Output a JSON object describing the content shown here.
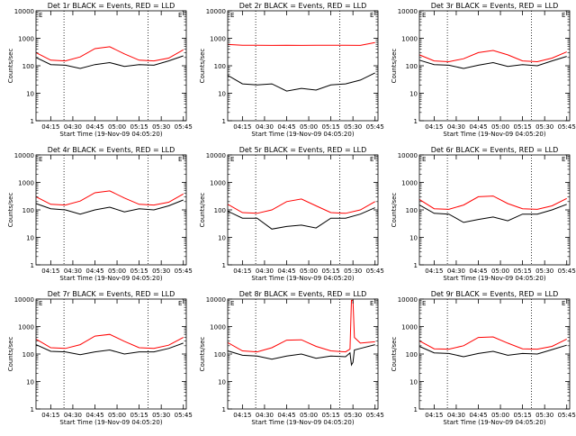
{
  "figure": {
    "xlabel": "Start Time (19-Nov-09 04:05:20)",
    "ylabel": "Counts/sec",
    "xticks": [
      "04:15",
      "04:30",
      "04:45",
      "05:00",
      "05:15",
      "05:30",
      "05:45"
    ],
    "yticks": [
      "1",
      "10",
      "100",
      "1000",
      "10000"
    ],
    "colors": {
      "events": "#000000",
      "lld": "#ff0000"
    },
    "corner_mark": "E"
  },
  "chart_data": [
    {
      "type": "line",
      "title": "Det 1r BLACK = Events, RED = LLD",
      "yscale": "log",
      "ylim": [
        1,
        10000
      ],
      "xlim": [
        "04:05",
        "05:47"
      ],
      "vlines": [
        "04:24",
        "05:21"
      ],
      "series": [
        {
          "name": "LLD",
          "color": "#ff0000",
          "x": [
            "04:05",
            "04:15",
            "04:25",
            "04:35",
            "04:45",
            "04:55",
            "05:05",
            "05:15",
            "05:25",
            "05:35",
            "05:45"
          ],
          "values": [
            300,
            160,
            150,
            210,
            420,
            490,
            270,
            160,
            150,
            190,
            380
          ]
        },
        {
          "name": "Events",
          "color": "#000000",
          "x": [
            "04:05",
            "04:15",
            "04:25",
            "04:35",
            "04:45",
            "04:55",
            "05:05",
            "05:15",
            "05:25",
            "05:35",
            "05:45"
          ],
          "values": [
            200,
            110,
            105,
            80,
            110,
            130,
            95,
            110,
            105,
            150,
            230
          ]
        }
      ]
    },
    {
      "type": "line",
      "title": "Det 2r BLACK = Events, RED = LLD",
      "yscale": "log",
      "ylim": [
        1,
        10000
      ],
      "xlim": [
        "04:05",
        "05:47"
      ],
      "vlines": [
        "04:24",
        "05:21"
      ],
      "series": [
        {
          "name": "LLD",
          "color": "#ff0000",
          "x": [
            "04:05",
            "04:15",
            "04:25",
            "04:35",
            "04:45",
            "04:55",
            "05:05",
            "05:15",
            "05:25",
            "05:35",
            "05:45"
          ],
          "values": [
            600,
            560,
            560,
            550,
            560,
            550,
            560,
            560,
            560,
            550,
            700
          ]
        },
        {
          "name": "Events",
          "color": "#000000",
          "x": [
            "04:05",
            "04:15",
            "04:25",
            "04:35",
            "04:45",
            "04:55",
            "05:05",
            "05:15",
            "05:25",
            "05:35",
            "05:45"
          ],
          "values": [
            45,
            22,
            20,
            22,
            12,
            15,
            13,
            20,
            22,
            30,
            55
          ]
        }
      ]
    },
    {
      "type": "line",
      "title": "Det 3r BLACK = Events, RED = LLD",
      "yscale": "log",
      "ylim": [
        1,
        10000
      ],
      "xlim": [
        "04:05",
        "05:47"
      ],
      "vlines": [
        "04:24",
        "05:21"
      ],
      "series": [
        {
          "name": "LLD",
          "color": "#ff0000",
          "x": [
            "04:05",
            "04:15",
            "04:25",
            "04:35",
            "04:45",
            "04:55",
            "05:05",
            "05:15",
            "05:25",
            "05:35",
            "05:45"
          ],
          "values": [
            250,
            150,
            140,
            180,
            300,
            360,
            250,
            150,
            140,
            190,
            320
          ]
        },
        {
          "name": "Events",
          "color": "#000000",
          "x": [
            "04:05",
            "04:15",
            "04:25",
            "04:35",
            "04:45",
            "04:55",
            "05:05",
            "05:15",
            "05:25",
            "05:35",
            "05:45"
          ],
          "values": [
            160,
            110,
            105,
            80,
            105,
            130,
            95,
            110,
            100,
            150,
            220
          ]
        }
      ]
    },
    {
      "type": "line",
      "title": "Det 4r BLACK = Events, RED = LLD",
      "yscale": "log",
      "ylim": [
        1,
        10000
      ],
      "xlim": [
        "04:05",
        "05:47"
      ],
      "vlines": [
        "04:24",
        "05:21"
      ],
      "series": [
        {
          "name": "LLD",
          "color": "#ff0000",
          "x": [
            "04:05",
            "04:15",
            "04:25",
            "04:35",
            "04:45",
            "04:55",
            "05:05",
            "05:15",
            "05:25",
            "05:35",
            "05:45"
          ],
          "values": [
            300,
            160,
            150,
            210,
            420,
            490,
            270,
            160,
            150,
            190,
            380
          ]
        },
        {
          "name": "Events",
          "color": "#000000",
          "x": [
            "04:05",
            "04:15",
            "04:25",
            "04:35",
            "04:45",
            "04:55",
            "05:05",
            "05:15",
            "05:25",
            "05:35",
            "05:45"
          ],
          "values": [
            170,
            110,
            100,
            70,
            100,
            125,
            85,
            110,
            100,
            140,
            230
          ]
        }
      ]
    },
    {
      "type": "line",
      "title": "Det 5r BLACK = Events, RED = LLD",
      "yscale": "log",
      "ylim": [
        1,
        10000
      ],
      "xlim": [
        "04:05",
        "05:47"
      ],
      "vlines": [
        "04:24",
        "05:21"
      ],
      "series": [
        {
          "name": "LLD",
          "color": "#ff0000",
          "x": [
            "04:05",
            "04:15",
            "04:25",
            "04:35",
            "04:45",
            "04:55",
            "05:05",
            "05:15",
            "05:25",
            "05:35",
            "05:45"
          ],
          "values": [
            160,
            80,
            75,
            100,
            200,
            250,
            140,
            80,
            75,
            100,
            200
          ]
        },
        {
          "name": "Events",
          "color": "#000000",
          "x": [
            "04:05",
            "04:15",
            "04:25",
            "04:35",
            "04:45",
            "04:55",
            "05:05",
            "05:15",
            "05:25",
            "05:35",
            "05:45"
          ],
          "values": [
            90,
            50,
            50,
            20,
            25,
            28,
            22,
            50,
            50,
            70,
            120
          ]
        }
      ]
    },
    {
      "type": "line",
      "title": "Det 6r BLACK = Events, RED = LLD",
      "yscale": "log",
      "ylim": [
        1,
        10000
      ],
      "xlim": [
        "04:05",
        "05:47"
      ],
      "vlines": [
        "04:24",
        "05:21"
      ],
      "series": [
        {
          "name": "LLD",
          "color": "#ff0000",
          "x": [
            "04:05",
            "04:15",
            "04:25",
            "04:35",
            "04:45",
            "04:55",
            "05:05",
            "05:15",
            "05:25",
            "05:35",
            "05:45"
          ],
          "values": [
            240,
            110,
            105,
            150,
            300,
            320,
            170,
            110,
            105,
            140,
            260
          ]
        },
        {
          "name": "Events",
          "color": "#000000",
          "x": [
            "04:05",
            "04:15",
            "04:25",
            "04:35",
            "04:45",
            "04:55",
            "05:05",
            "05:15",
            "05:25",
            "05:35",
            "05:45"
          ],
          "values": [
            150,
            75,
            70,
            35,
            45,
            55,
            40,
            70,
            70,
            100,
            160
          ]
        }
      ]
    },
    {
      "type": "line",
      "title": "Det 7r BLACK = Events, RED = LLD",
      "yscale": "log",
      "ylim": [
        1,
        10000
      ],
      "xlim": [
        "04:05",
        "05:47"
      ],
      "vlines": [
        "04:24",
        "05:21"
      ],
      "series": [
        {
          "name": "LLD",
          "color": "#ff0000",
          "x": [
            "04:05",
            "04:15",
            "04:25",
            "04:35",
            "04:45",
            "04:55",
            "05:05",
            "05:15",
            "05:25",
            "05:35",
            "05:45"
          ],
          "values": [
            350,
            170,
            160,
            220,
            450,
            520,
            290,
            170,
            160,
            210,
            400
          ]
        },
        {
          "name": "Events",
          "color": "#000000",
          "x": [
            "04:05",
            "04:15",
            "04:25",
            "04:35",
            "04:45",
            "04:55",
            "05:05",
            "05:15",
            "05:25",
            "05:35",
            "05:45"
          ],
          "values": [
            220,
            125,
            120,
            95,
            120,
            140,
            100,
            120,
            120,
            160,
            250
          ]
        }
      ]
    },
    {
      "type": "line",
      "title": "Det 8r BLACK = Events, RED = LLD",
      "yscale": "log",
      "ylim": [
        1,
        10000
      ],
      "xlim": [
        "04:05",
        "05:47"
      ],
      "vlines": [
        "04:24",
        "05:21"
      ],
      "series": [
        {
          "name": "LLD",
          "color": "#ff0000",
          "x": [
            "04:05",
            "04:15",
            "04:25",
            "04:35",
            "04:45",
            "04:55",
            "05:05",
            "05:15",
            "05:25",
            "05:28",
            "05:29",
            "05:30",
            "05:31",
            "05:35",
            "05:45"
          ],
          "values": [
            260,
            130,
            120,
            170,
            320,
            330,
            190,
            130,
            120,
            150,
            9000,
            9000,
            400,
            250,
            280
          ]
        },
        {
          "name": "Events",
          "color": "#000000",
          "x": [
            "04:05",
            "04:15",
            "04:25",
            "04:35",
            "04:45",
            "04:55",
            "05:05",
            "05:15",
            "05:25",
            "05:28",
            "05:29",
            "05:30",
            "05:31",
            "05:35",
            "05:45"
          ],
          "values": [
            130,
            90,
            85,
            65,
            85,
            100,
            70,
            85,
            80,
            110,
            40,
            50,
            140,
            160,
            220
          ]
        }
      ]
    },
    {
      "type": "line",
      "title": "Det 9r BLACK = Events, RED = LLD",
      "yscale": "log",
      "ylim": [
        1,
        10000
      ],
      "xlim": [
        "04:05",
        "05:47"
      ],
      "vlines": [
        "04:24",
        "05:21"
      ],
      "series": [
        {
          "name": "LLD",
          "color": "#ff0000",
          "x": [
            "04:05",
            "04:15",
            "04:25",
            "04:35",
            "04:45",
            "04:55",
            "05:05",
            "05:15",
            "05:25",
            "05:35",
            "05:45"
          ],
          "values": [
            300,
            155,
            150,
            200,
            400,
            420,
            250,
            155,
            150,
            190,
            350
          ]
        },
        {
          "name": "Events",
          "color": "#000000",
          "x": [
            "04:05",
            "04:15",
            "04:25",
            "04:35",
            "04:45",
            "04:55",
            "05:05",
            "05:15",
            "05:25",
            "05:35",
            "05:45"
          ],
          "values": [
            190,
            110,
            105,
            80,
            105,
            125,
            90,
            105,
            100,
            145,
            210
          ]
        }
      ]
    }
  ]
}
